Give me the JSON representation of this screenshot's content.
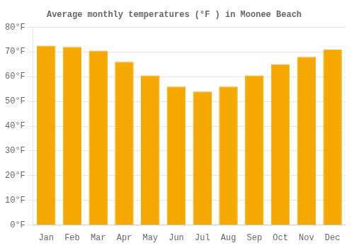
{
  "chart_data": {
    "type": "bar",
    "title": "Average monthly temperatures (°F ) in Moonee Beach",
    "categories": [
      "Jan",
      "Feb",
      "Mar",
      "Apr",
      "May",
      "Jun",
      "Jul",
      "Aug",
      "Sep",
      "Oct",
      "Nov",
      "Dec"
    ],
    "values": [
      72.5,
      72.0,
      70.5,
      66.0,
      60.5,
      56.0,
      54.0,
      56.0,
      60.5,
      65.0,
      68.0,
      71.0
    ],
    "color": "#F5A800",
    "ylim": [
      0,
      80
    ],
    "yticks": [
      {
        "value": 0,
        "label": "0°F"
      },
      {
        "value": 10,
        "label": "10°F"
      },
      {
        "value": 20,
        "label": "20°F"
      },
      {
        "value": 30,
        "label": "30°F"
      },
      {
        "value": 40,
        "label": "40°F"
      },
      {
        "value": 50,
        "label": "50°F"
      },
      {
        "value": 60,
        "label": "60°F"
      },
      {
        "value": 70,
        "label": "70°F"
      },
      {
        "value": 80,
        "label": "80°F"
      }
    ],
    "grid": true
  }
}
